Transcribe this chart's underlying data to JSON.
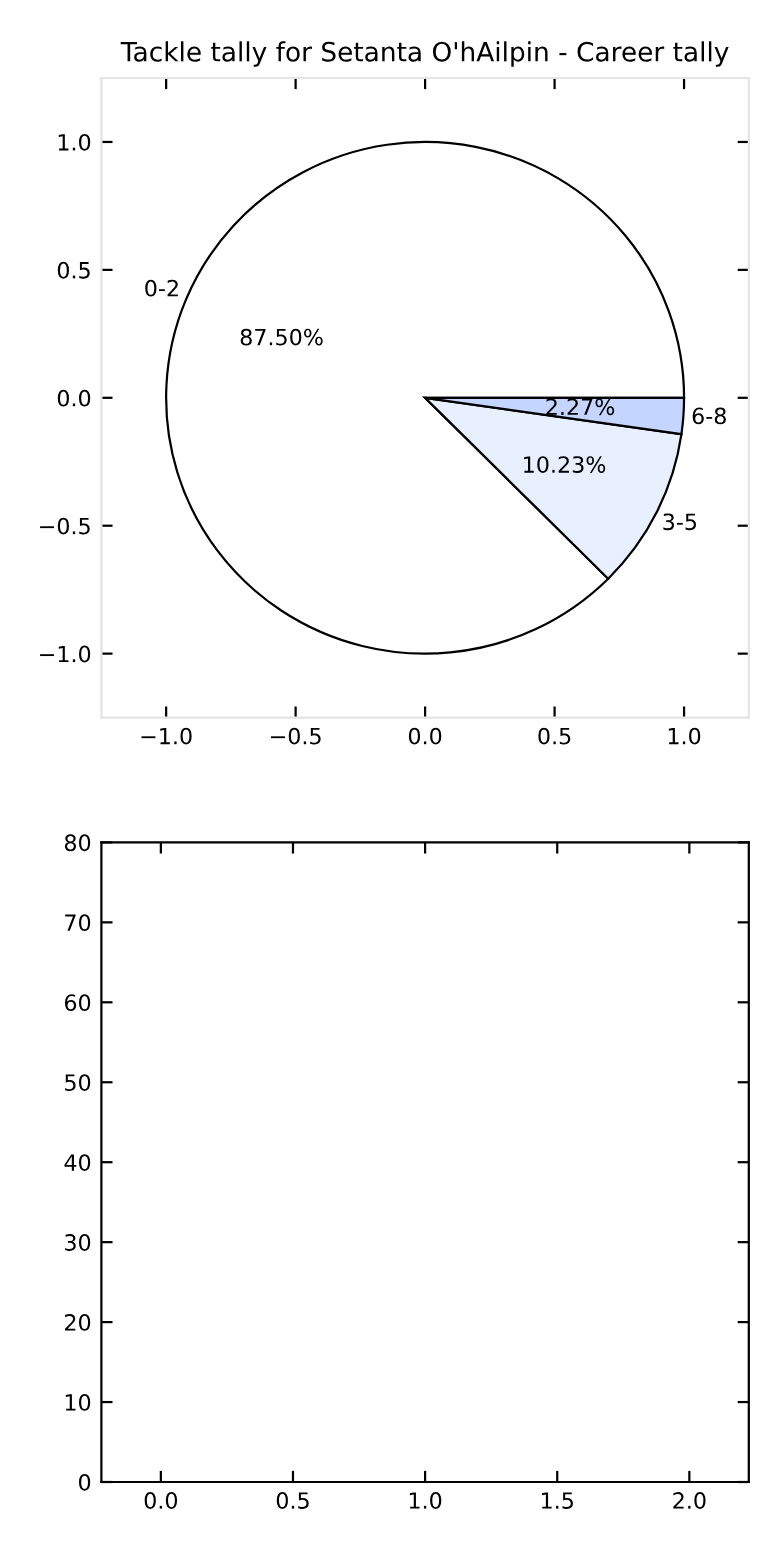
{
  "chart_data": [
    {
      "type": "scatter",
      "xlim": [
        -1.25,
        1.25
      ],
      "xticks": [
        {
          "value": -1.0,
          "label": "−1.0"
        },
        {
          "value": -0.5,
          "label": "−0.5"
        },
        {
          "value": 0.0,
          "label": "0.0"
        },
        {
          "value": 0.5,
          "label": "0.5"
        },
        {
          "value": 1.0,
          "label": "1.0"
        }
      ],
      "ylim": [
        -1.25,
        1.25
      ],
      "yticks": [
        {
          "value": -1.0,
          "label": "−1.0"
        },
        {
          "value": -0.5,
          "label": "−0.5"
        },
        {
          "value": 0.0,
          "label": "0.0"
        },
        {
          "value": 0.5,
          "label": "0.5"
        },
        {
          "value": 1.0,
          "label": "1.0"
        }
      ]
    },
    {
      "type": "pie",
      "title": "Tackle tally for Setanta O'hAilpin - Career tally",
      "categories": [
        "0-2",
        "3-5",
        "6-8"
      ],
      "values": [
        87.5,
        10.23,
        2.27
      ],
      "value_labels": [
        "87.50%",
        "10.23%",
        "2.27%"
      ],
      "colors": [
        "#ffffff",
        "#e8efff",
        "#c4d6ff"
      ]
    },
    {
      "type": "scatter",
      "xlim": [
        -0.225,
        2.225
      ],
      "xticks": [
        {
          "value": 0.0,
          "label": "0.0"
        },
        {
          "value": 0.5,
          "label": "0.5"
        },
        {
          "value": 1.0,
          "label": "1.0"
        },
        {
          "value": 1.5,
          "label": "1.5"
        },
        {
          "value": 2.0,
          "label": "2.0"
        }
      ],
      "ylim": [
        0,
        80
      ],
      "yticks": [
        0,
        10,
        20,
        30,
        40,
        50,
        60,
        70,
        80
      ]
    }
  ]
}
